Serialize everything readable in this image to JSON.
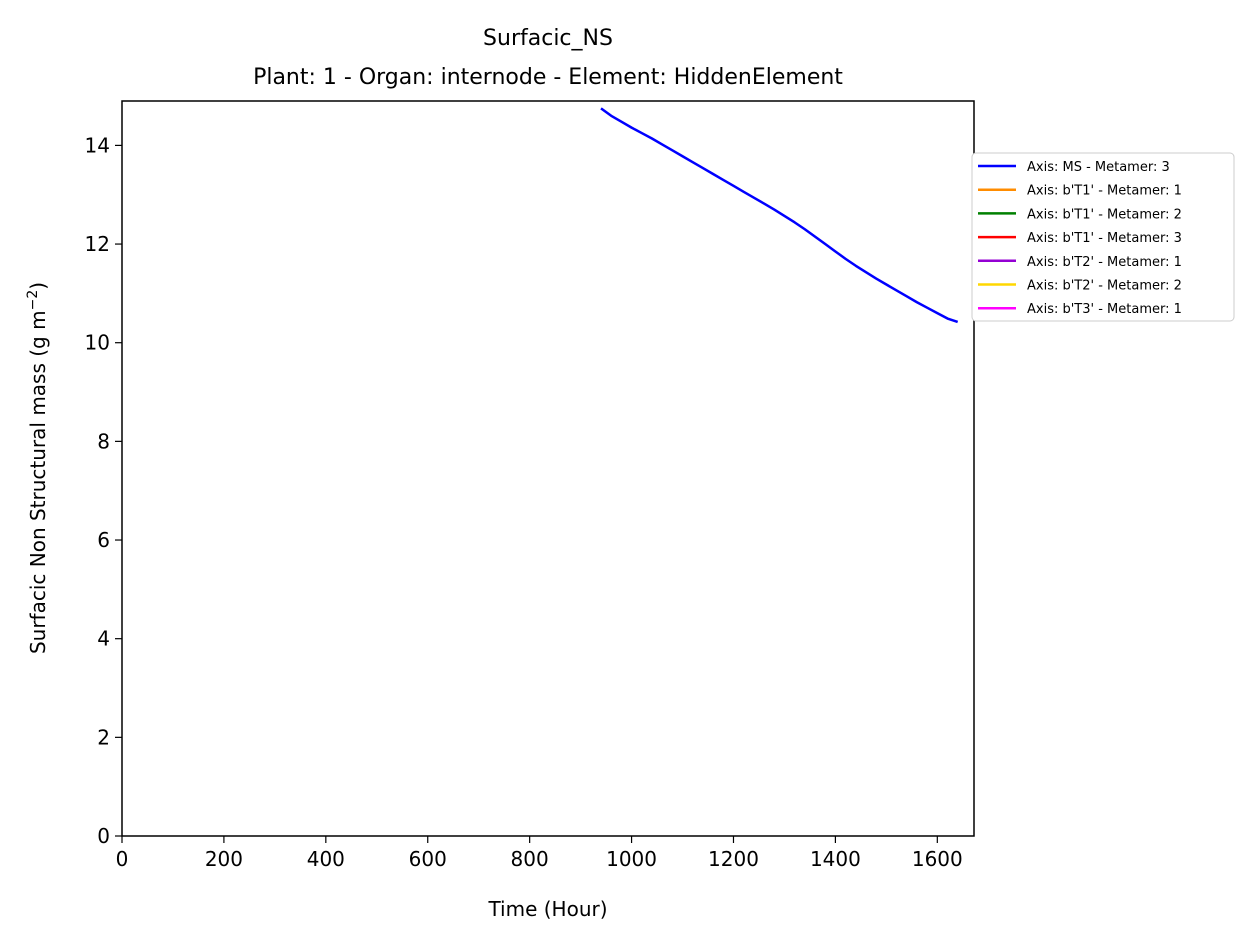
{
  "chart_data": {
    "type": "line",
    "title": "Surfacic_NS",
    "subtitle": "Plant: 1 - Organ: internode - Element: HiddenElement",
    "xlabel": "Time (Hour)",
    "ylabel_main": "Surfacic Non Structural mass (g m",
    "ylabel_sup": "−2",
    "ylabel_end": ")",
    "xlim": [
      0,
      1672
    ],
    "ylim": [
      0,
      14.9
    ],
    "xticks": [
      0,
      200,
      400,
      600,
      800,
      1000,
      1200,
      1400,
      1600
    ],
    "yticks": [
      0,
      2,
      4,
      6,
      8,
      10,
      12,
      14
    ],
    "grid": false,
    "legend_position": "outside-right",
    "series": [
      {
        "name": "Axis: MS - Metamer: 3",
        "color": "#0000ff",
        "x": [
          940,
          960,
          980,
          1000,
          1020,
          1040,
          1060,
          1080,
          1100,
          1120,
          1140,
          1160,
          1180,
          1200,
          1220,
          1240,
          1260,
          1280,
          1300,
          1320,
          1340,
          1360,
          1380,
          1400,
          1420,
          1440,
          1460,
          1480,
          1500,
          1520,
          1540,
          1560,
          1580,
          1600,
          1620,
          1640
        ],
        "y": [
          14.75,
          14.6,
          14.48,
          14.36,
          14.25,
          14.14,
          14.02,
          13.9,
          13.78,
          13.66,
          13.54,
          13.42,
          13.3,
          13.18,
          13.06,
          12.94,
          12.82,
          12.7,
          12.57,
          12.44,
          12.3,
          12.15,
          12.0,
          11.85,
          11.7,
          11.56,
          11.43,
          11.3,
          11.18,
          11.06,
          10.94,
          10.82,
          10.71,
          10.6,
          10.49,
          10.42
        ]
      },
      {
        "name": "Axis: b'T1' - Metamer: 1",
        "color": "#ff8c00",
        "x": [],
        "y": []
      },
      {
        "name": "Axis: b'T1' - Metamer: 2",
        "color": "#008000",
        "x": [],
        "y": []
      },
      {
        "name": "Axis: b'T1' - Metamer: 3",
        "color": "#ff0000",
        "x": [],
        "y": []
      },
      {
        "name": "Axis: b'T2' - Metamer: 1",
        "color": "#9400d3",
        "x": [],
        "y": []
      },
      {
        "name": "Axis: b'T2' - Metamer: 2",
        "color": "#ffd700",
        "x": [],
        "y": []
      },
      {
        "name": "Axis: b'T3' - Metamer: 1",
        "color": "#ff00ff",
        "x": [],
        "y": []
      }
    ]
  }
}
